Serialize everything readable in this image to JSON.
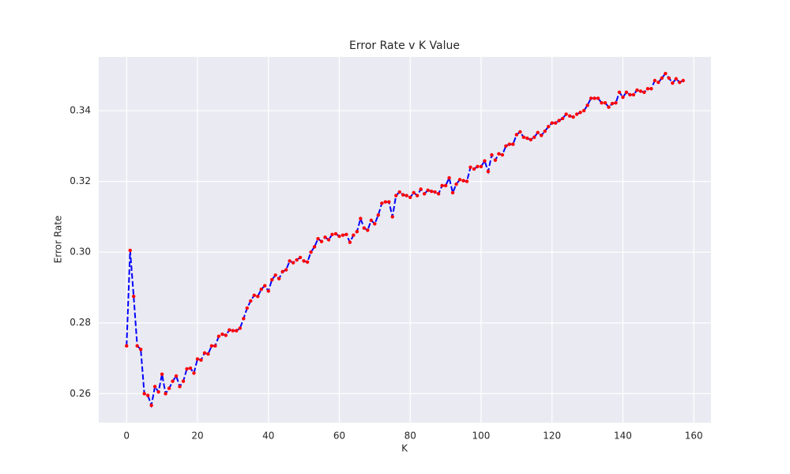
{
  "chart_data": {
    "type": "line",
    "title": "Error Rate v K Value",
    "x_label": "K",
    "y_label": "Error Rate",
    "x": [
      0,
      1,
      2,
      3,
      4,
      5,
      6,
      7,
      8,
      9,
      10,
      11,
      12,
      13,
      14,
      15,
      16,
      17,
      18,
      19,
      20,
      21,
      22,
      23,
      24,
      25,
      26,
      27,
      28,
      29,
      30,
      31,
      32,
      33,
      34,
      35,
      36,
      37,
      38,
      39,
      40,
      41,
      42,
      43,
      44,
      45,
      46,
      47,
      48,
      49,
      50,
      51,
      52,
      53,
      54,
      55,
      56,
      57,
      58,
      59,
      60,
      61,
      62,
      63,
      64,
      65,
      66,
      67,
      68,
      69,
      70,
      71,
      72,
      73,
      74,
      75,
      76,
      77,
      78,
      79,
      80,
      81,
      82,
      83,
      84,
      85,
      86,
      87,
      88,
      89,
      90,
      91,
      92,
      93,
      94,
      95,
      96,
      97,
      98,
      99,
      100,
      101,
      102,
      103,
      104,
      105,
      106,
      107,
      108,
      109,
      110,
      111,
      112,
      113,
      114,
      115,
      116,
      117,
      118,
      119,
      120,
      121,
      122,
      123,
      124,
      125,
      126,
      127,
      128,
      129,
      130,
      131,
      132,
      133,
      134,
      135,
      136,
      137,
      138,
      139,
      140,
      141,
      142,
      143,
      144,
      145,
      146,
      147,
      148,
      149,
      150,
      151,
      152,
      153,
      154,
      155,
      156,
      157
    ],
    "series": [
      {
        "color": "#0000ff",
        "marker_color": "#ff0000",
        "line_style": "dashed",
        "values": [
          0.2735,
          0.3005,
          0.2875,
          0.2735,
          0.2725,
          0.26,
          0.2595,
          0.2567,
          0.262,
          0.2605,
          0.2655,
          0.26,
          0.2615,
          0.2635,
          0.265,
          0.262,
          0.2635,
          0.267,
          0.2672,
          0.2658,
          0.2698,
          0.2695,
          0.2715,
          0.2712,
          0.2735,
          0.2735,
          0.2762,
          0.2768,
          0.2765,
          0.278,
          0.2778,
          0.2778,
          0.2785,
          0.2812,
          0.2842,
          0.2862,
          0.2878,
          0.2875,
          0.2895,
          0.2905,
          0.289,
          0.2922,
          0.2935,
          0.2925,
          0.2945,
          0.295,
          0.2975,
          0.297,
          0.2978,
          0.2985,
          0.2975,
          0.2972,
          0.3,
          0.3015,
          0.3038,
          0.303,
          0.3042,
          0.3035,
          0.305,
          0.3052,
          0.3045,
          0.3048,
          0.305,
          0.3028,
          0.3048,
          0.3058,
          0.3095,
          0.3068,
          0.3062,
          0.309,
          0.308,
          0.3105,
          0.3138,
          0.3142,
          0.3142,
          0.31,
          0.316,
          0.317,
          0.3162,
          0.316,
          0.3155,
          0.3168,
          0.316,
          0.3178,
          0.3165,
          0.3175,
          0.3172,
          0.317,
          0.3165,
          0.3188,
          0.3188,
          0.321,
          0.3168,
          0.3192,
          0.3205,
          0.3202,
          0.32,
          0.324,
          0.3235,
          0.3242,
          0.3242,
          0.3258,
          0.3228,
          0.3275,
          0.326,
          0.3278,
          0.3275,
          0.33,
          0.3305,
          0.3305,
          0.3332,
          0.334,
          0.3325,
          0.3322,
          0.3318,
          0.3325,
          0.3338,
          0.333,
          0.3342,
          0.3355,
          0.3365,
          0.3365,
          0.3372,
          0.3378,
          0.339,
          0.3385,
          0.3382,
          0.339,
          0.3395,
          0.34,
          0.3415,
          0.3435,
          0.3435,
          0.3435,
          0.3422,
          0.3422,
          0.341,
          0.342,
          0.3422,
          0.3452,
          0.3438,
          0.3452,
          0.3445,
          0.3445,
          0.3458,
          0.3455,
          0.3452,
          0.3462,
          0.3462,
          0.3485,
          0.348,
          0.3492,
          0.3505,
          0.3492,
          0.3478,
          0.349,
          0.348,
          0.3485
        ]
      }
    ],
    "xlim": [
      -7.85,
      164.85
    ],
    "ylim": [
      0.2518,
      0.3552
    ],
    "xticks": [
      0,
      20,
      40,
      60,
      80,
      100,
      120,
      140,
      160
    ],
    "yticks": [
      0.26,
      0.28,
      {
        "value": 0.3,
        "label": "0.30"
      },
      0.32,
      0.34
    ],
    "grid": true,
    "background": "#eaeaf2"
  }
}
